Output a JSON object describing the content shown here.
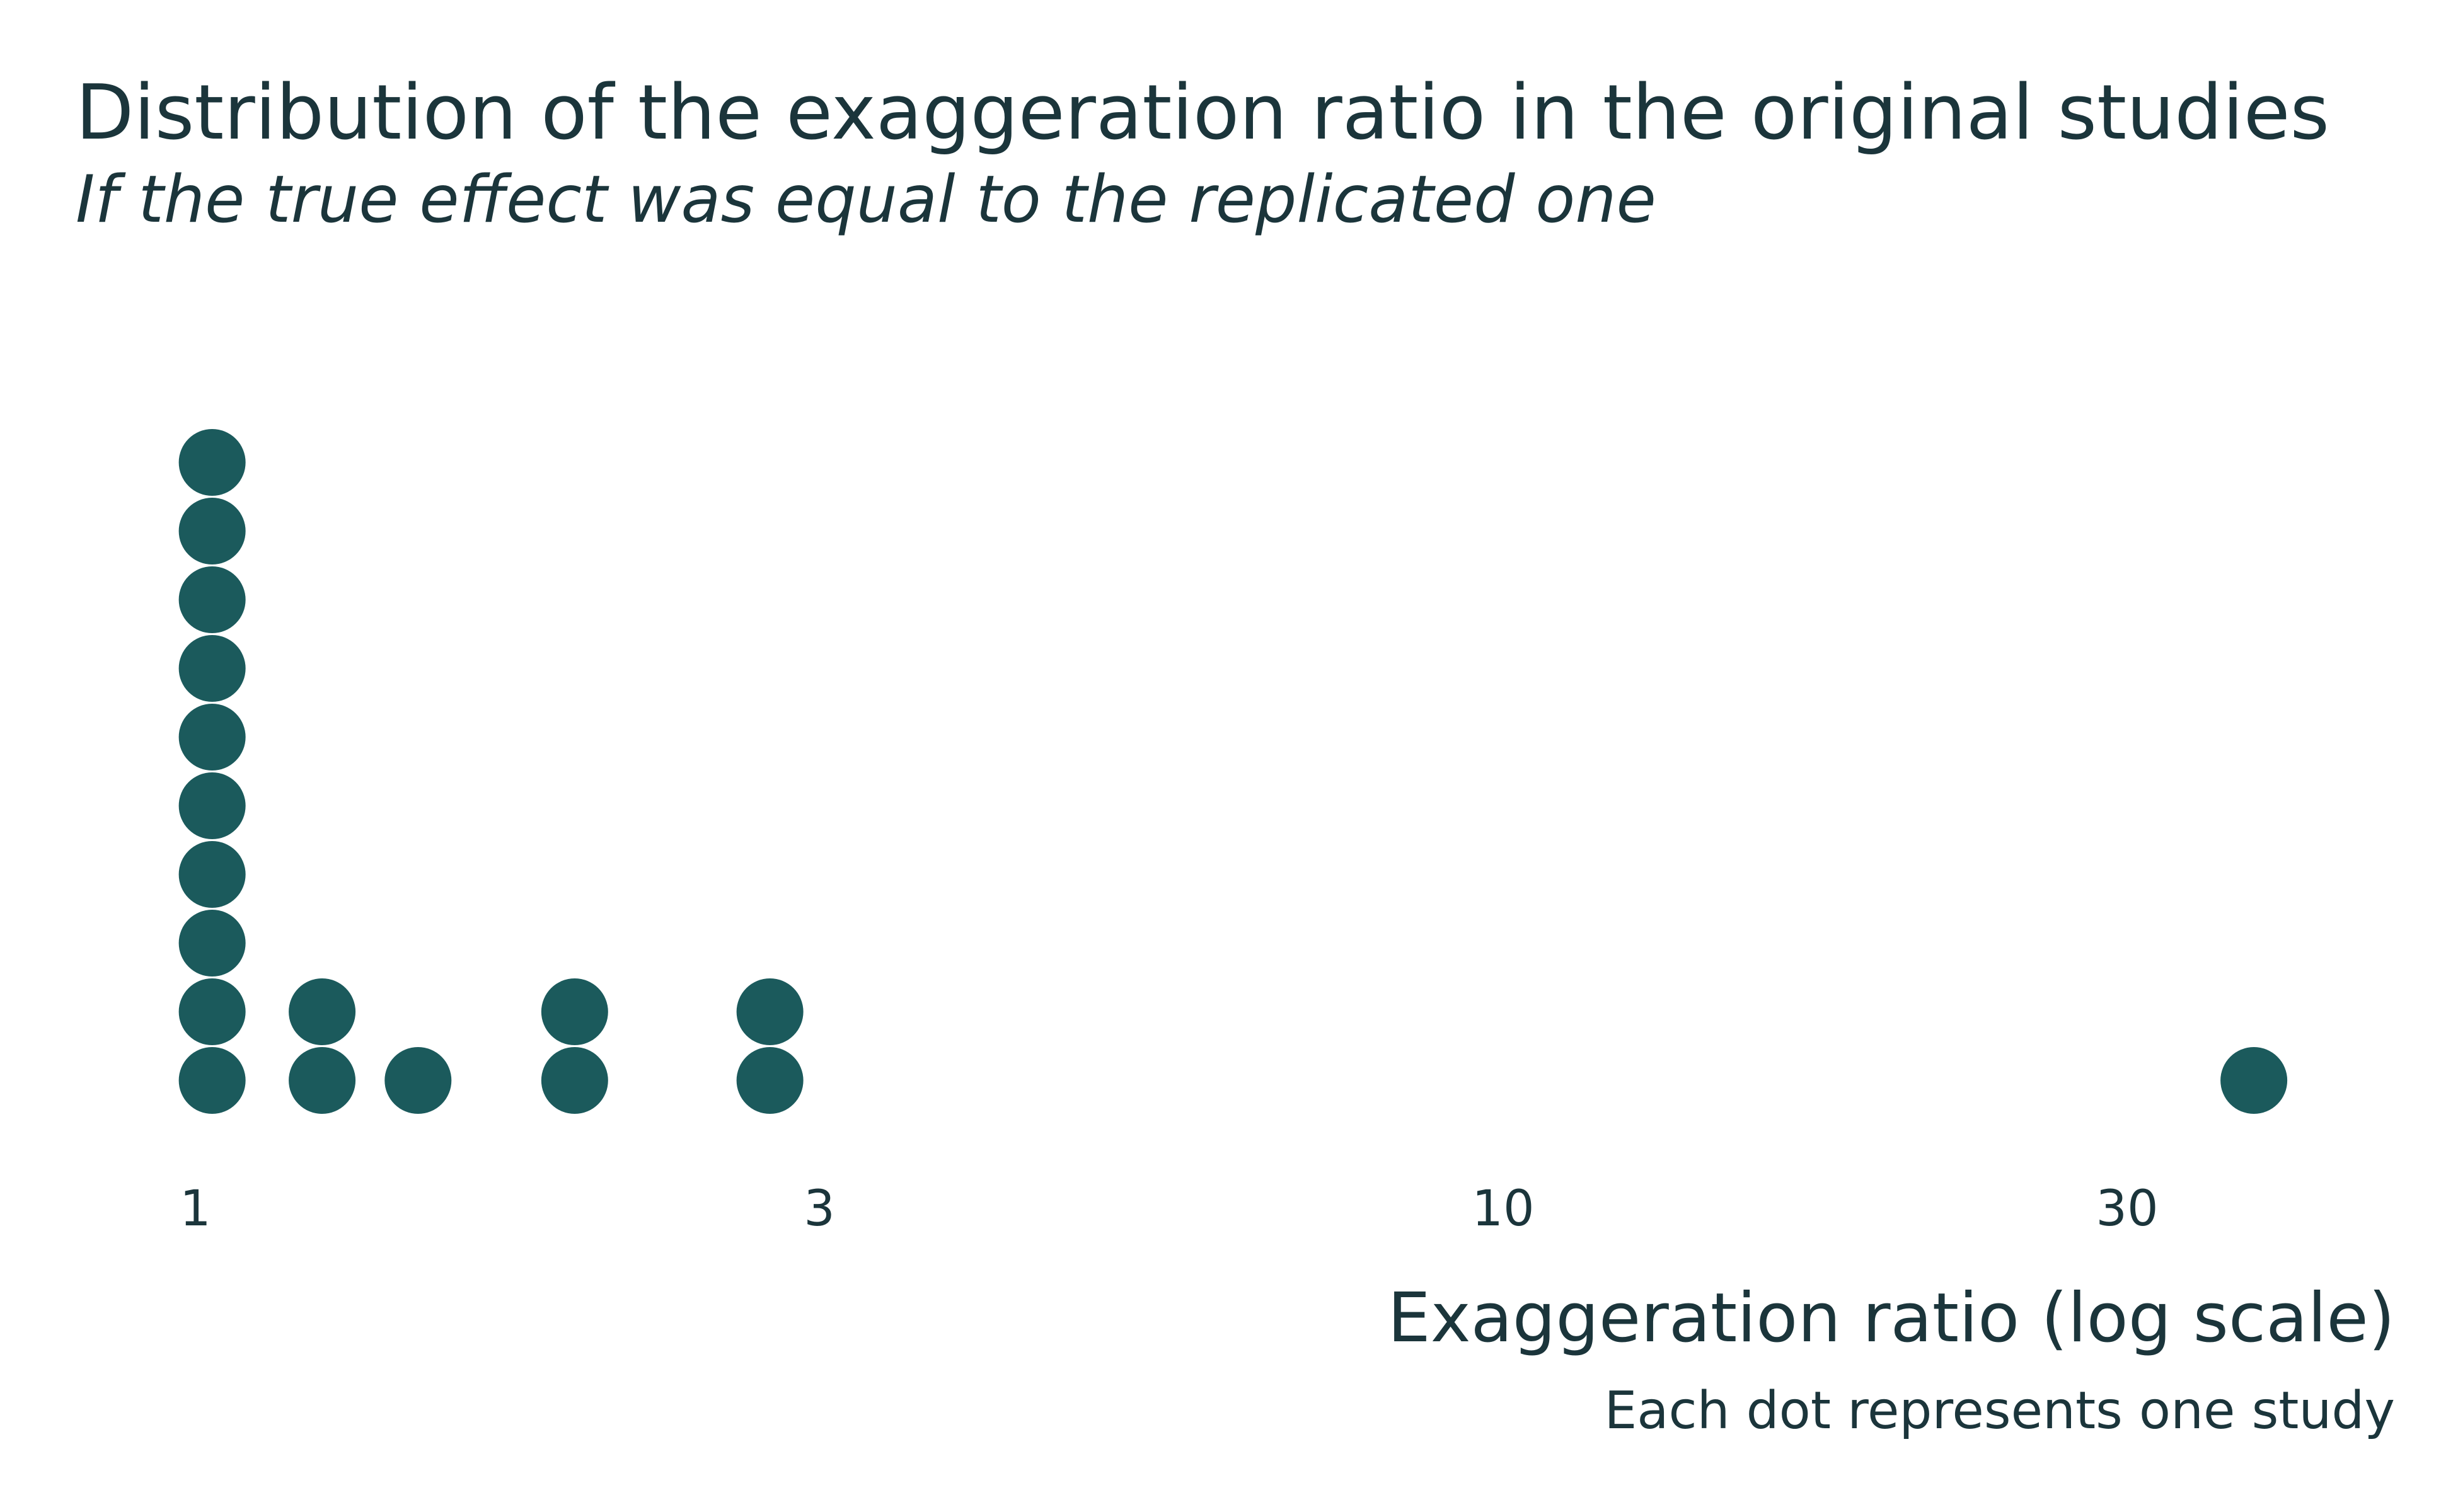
{
  "chart_data": {
    "type": "scatter",
    "subtype": "dotplot",
    "title": "Distribution of the exaggeration ratio in the original studies",
    "subtitle": "If the true effect was equal to the replicated one",
    "xlabel": "Exaggeration ratio (log scale)",
    "caption": "Each dot represents one study",
    "x_scale": "log",
    "x_ticks": [
      1,
      3,
      10,
      30
    ],
    "x_tick_labels": [
      "1",
      "3",
      "10",
      "30"
    ],
    "xlim": [
      1,
      40
    ],
    "grid": false,
    "color": "#1b5a5c",
    "bins": [
      {
        "x": 1.03,
        "count": 10
      },
      {
        "x": 1.25,
        "count": 2
      },
      {
        "x": 1.48,
        "count": 1
      },
      {
        "x": 1.95,
        "count": 2
      },
      {
        "x": 2.75,
        "count": 2
      },
      {
        "x": 37.5,
        "count": 1
      }
    ]
  }
}
